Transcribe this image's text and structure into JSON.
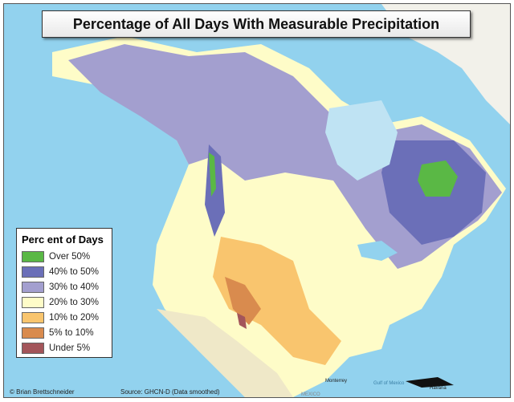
{
  "title": "Percentage of All Days With Measurable Precipitation",
  "legend": {
    "title": "Perc ent of Days",
    "items": [
      {
        "label": "Over 50%",
        "color": "#5ab845"
      },
      {
        "label": "40% to 50%",
        "color": "#6b6fb8"
      },
      {
        "label": "30% to 40%",
        "color": "#a39fcf"
      },
      {
        "label": "20% to 30%",
        "color": "#fefcc8"
      },
      {
        "label": "10% to 20%",
        "color": "#f9c56e"
      },
      {
        "label": "5% to 10%",
        "color": "#d98b4e"
      },
      {
        "label": "Under 5%",
        "color": "#a3555a"
      }
    ]
  },
  "credit": "© Brian Brettschneider",
  "source": "Source: GHCN-D (Data smoothed)",
  "map_labels": {
    "monterrey": "Monterrey",
    "gulf": "Gulf of Mexico",
    "havana": "Havana",
    "mexico": "MEXICO"
  }
}
